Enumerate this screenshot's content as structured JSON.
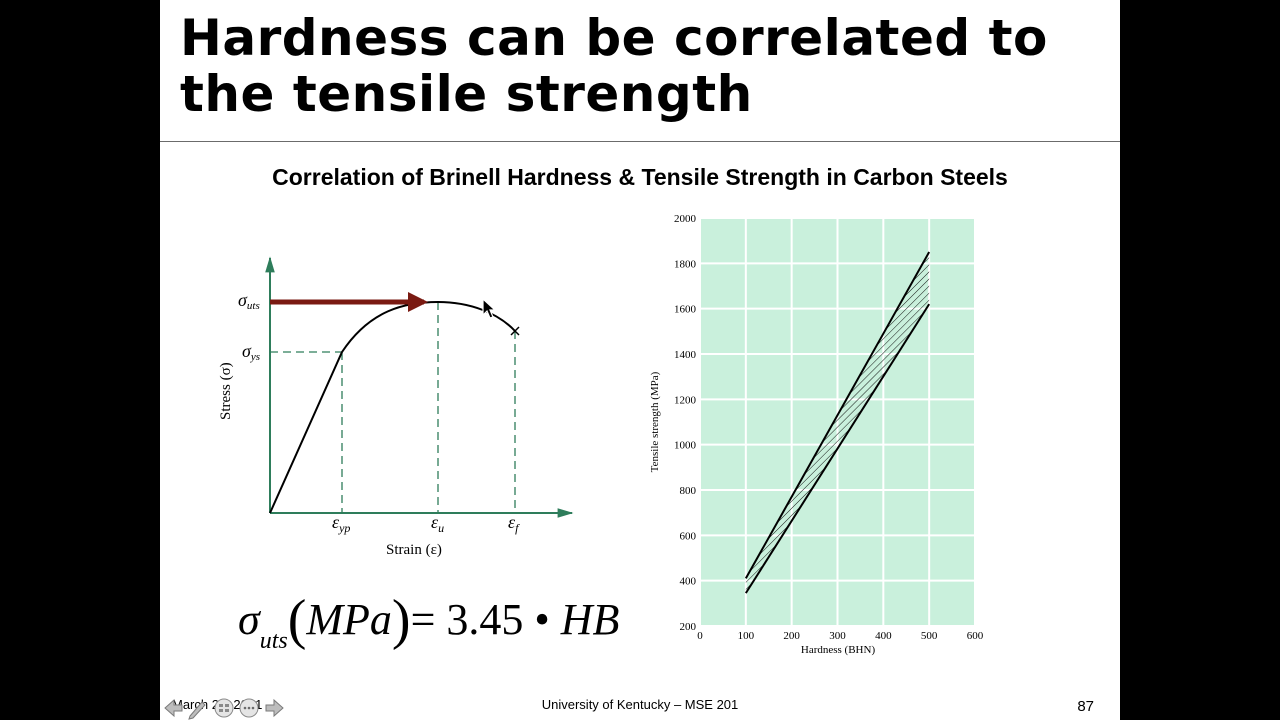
{
  "slide": {
    "title_line1": "Hardness can be correlated to",
    "title_line2": "the tensile strength",
    "subtitle": "Correlation of Brinell Hardness & Tensile Strength in Carbon Steels"
  },
  "stress_strain": {
    "y_axis_label": "Stress (σ)",
    "x_axis_label": "Strain (ε)",
    "sigma_uts": "σ",
    "sigma_uts_sub": "uts",
    "sigma_ys": "σ",
    "sigma_ys_sub": "ys",
    "eps_yp": "ε",
    "eps_yp_sub": "yp",
    "eps_u": "ε",
    "eps_u_sub": "u",
    "eps_f": "ε",
    "eps_f_sub": "f",
    "colors": {
      "axis": "#2e7d5b",
      "curve": "#000000",
      "arrow": "#7a1a12",
      "guide": "#2e7d5b"
    }
  },
  "formula": {
    "sigma": "σ",
    "sub": "uts",
    "unit": "MPa",
    "rhs": "= 3.45 • ",
    "var": "HB"
  },
  "chart_data": {
    "type": "area",
    "xlabel": "Hardness (BHN)",
    "ylabel": "Tensile strength (MPa)",
    "xlim": [
      0,
      600
    ],
    "ylim": [
      200,
      2000
    ],
    "x_ticks": [
      0,
      100,
      200,
      300,
      400,
      500,
      600
    ],
    "y_ticks": [
      200,
      400,
      600,
      800,
      1000,
      1200,
      1400,
      1600,
      1800,
      2000
    ],
    "grid": true,
    "series": [
      {
        "x": [
          100,
          500
        ],
        "values": [
          410,
          1850
        ]
      },
      {
        "x": [
          100,
          500
        ],
        "values": [
          345,
          1620
        ]
      }
    ],
    "colors": {
      "background": "#c9f0dc",
      "grid": "#ffffff",
      "line": "#000000"
    }
  },
  "footer": {
    "date": "March 20, 2021",
    "center": "University of Kentucky – MSE 201",
    "page": "87"
  }
}
